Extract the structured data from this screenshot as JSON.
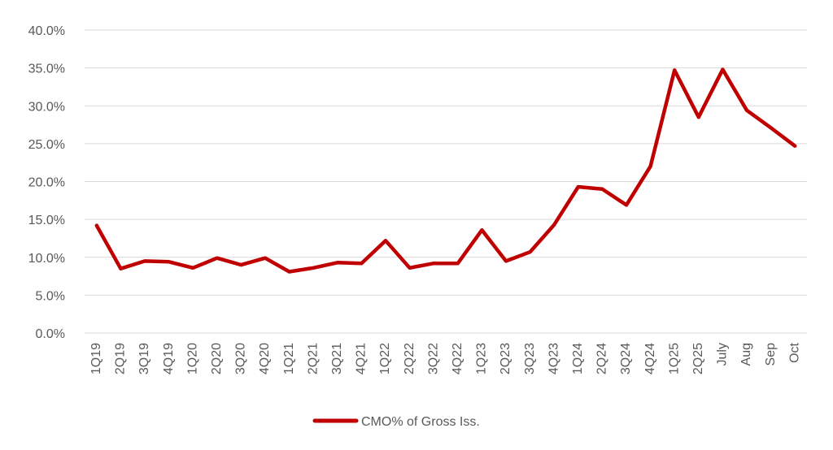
{
  "chart_data": {
    "type": "line",
    "title": "",
    "xlabel": "",
    "ylabel": "",
    "categories": [
      "1Q19",
      "2Q19",
      "3Q19",
      "4Q19",
      "1Q20",
      "2Q20",
      "3Q20",
      "4Q20",
      "1Q21",
      "2Q21",
      "3Q21",
      "4Q21",
      "1Q22",
      "2Q22",
      "3Q22",
      "4Q22",
      "1Q23",
      "2Q23",
      "3Q23",
      "4Q23",
      "1Q24",
      "2Q24",
      "3Q24",
      "4Q24",
      "1Q25",
      "2Q25",
      "July",
      "Aug",
      "Sep",
      "Oct"
    ],
    "series": [
      {
        "name": "CMO% of Gross Iss.",
        "color": "#c00000",
        "values": [
          14.2,
          8.5,
          9.5,
          9.4,
          8.6,
          9.9,
          9.0,
          9.9,
          8.1,
          8.6,
          9.3,
          9.2,
          12.2,
          8.6,
          9.2,
          9.2,
          13.6,
          9.5,
          10.7,
          14.3,
          19.3,
          19.0,
          16.9,
          22.0,
          34.7,
          28.5,
          34.8,
          29.4,
          27.1,
          24.7
        ]
      }
    ],
    "ylim": [
      0,
      40
    ],
    "yticks": [
      "0.0%",
      "5.0%",
      "10.0%",
      "15.0%",
      "20.0%",
      "25.0%",
      "30.0%",
      "35.0%",
      "40.0%"
    ],
    "ytick_values": [
      0,
      5,
      10,
      15,
      20,
      25,
      30,
      35,
      40
    ],
    "grid": true,
    "legend": {
      "position": "bottom-center"
    }
  }
}
